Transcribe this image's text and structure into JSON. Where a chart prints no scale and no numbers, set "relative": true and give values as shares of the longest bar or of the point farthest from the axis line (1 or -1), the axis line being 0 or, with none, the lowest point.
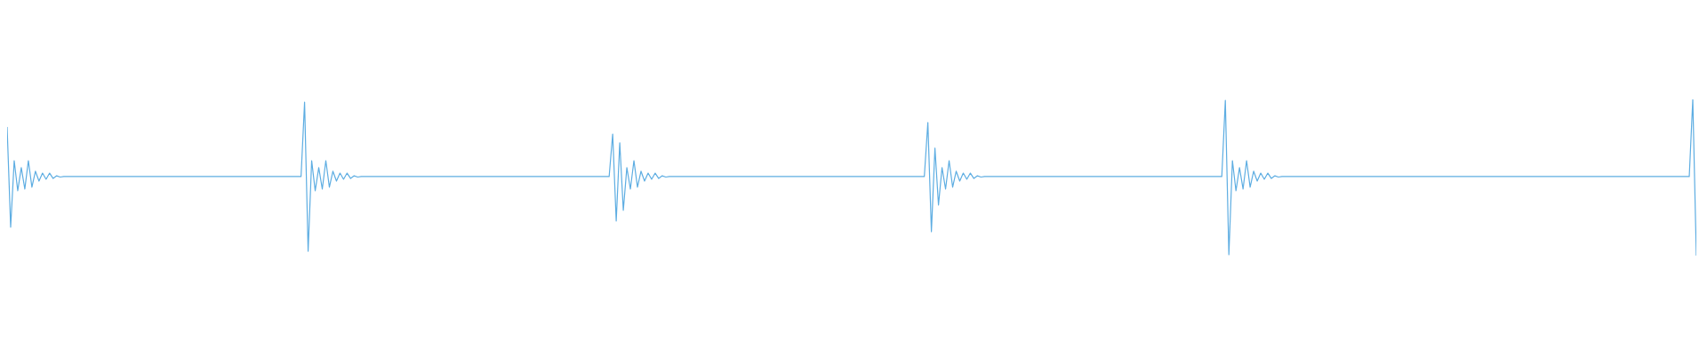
{
  "chart_data": {
    "type": "line",
    "relative": true,
    "color": "#5dade2",
    "categories": [
      null,
      null,
      null,
      null,
      null,
      null,
      null,
      null,
      null,
      null,
      null,
      null,
      null,
      null,
      null,
      null,
      null,
      null,
      null,
      null,
      null,
      null,
      null,
      null,
      null,
      null,
      null,
      null,
      null,
      null,
      null,
      null,
      null,
      null,
      null,
      null,
      null,
      null,
      null,
      null,
      null,
      null,
      null,
      null,
      null,
      null,
      null,
      null,
      null,
      null,
      null,
      null,
      null,
      null,
      null,
      null,
      null,
      null,
      null,
      null,
      null,
      null,
      null,
      null,
      null,
      null,
      null,
      null,
      null,
      null,
      null,
      null,
      null,
      null,
      null,
      null,
      null,
      null,
      null,
      null,
      null,
      null,
      null,
      null,
      null,
      null,
      null,
      null,
      null,
      null,
      null,
      null,
      null,
      null,
      null,
      null,
      null,
      null,
      null,
      null,
      null,
      null,
      null,
      null,
      null,
      null,
      null,
      null,
      null,
      null,
      null,
      null,
      null,
      null,
      null,
      null,
      null,
      null,
      null,
      null,
      null,
      null,
      null,
      null,
      null,
      null,
      null,
      null,
      null,
      null,
      null,
      null,
      null,
      null,
      null,
      null,
      null,
      null,
      null,
      null,
      null,
      null,
      null,
      null,
      null,
      null,
      null,
      null,
      null,
      null,
      null,
      null,
      null,
      null,
      null,
      null,
      null,
      null,
      null,
      null,
      null,
      null,
      null,
      null,
      null,
      null,
      null,
      null,
      null,
      null,
      null,
      null,
      null,
      null,
      null,
      null,
      null,
      null,
      null,
      null,
      null,
      null,
      null,
      null,
      null,
      null,
      null,
      null,
      null,
      null,
      null,
      null,
      null,
      null,
      null,
      null,
      null,
      null,
      null,
      null,
      null,
      null,
      null,
      null,
      null,
      null,
      null,
      null,
      null,
      null,
      null,
      null,
      null,
      null,
      null,
      null,
      null,
      null,
      null,
      null,
      null,
      null,
      null,
      null,
      null,
      null,
      null,
      null,
      null,
      null,
      null,
      null,
      null,
      null,
      null,
      null,
      null,
      null,
      null,
      null,
      null,
      null,
      null,
      null,
      null,
      null,
      null,
      null,
      null,
      null,
      null,
      null,
      null,
      null,
      null,
      null,
      null,
      null,
      null,
      null,
      null,
      null,
      null,
      null,
      null,
      null,
      null,
      null,
      null,
      null,
      null,
      null,
      null,
      null,
      null,
      null,
      null,
      null,
      null,
      null,
      null,
      null,
      null,
      null,
      null,
      null,
      null,
      null,
      null,
      null,
      null,
      null,
      null,
      null,
      null,
      null,
      null,
      null,
      null,
      null,
      null,
      null,
      null,
      null,
      null,
      null,
      null,
      null,
      null,
      null,
      null,
      null,
      null,
      null,
      null,
      null,
      null,
      null,
      null,
      null,
      null,
      null,
      null,
      null,
      null,
      null,
      null,
      null,
      null,
      null,
      null,
      null,
      null,
      null,
      null,
      null,
      null,
      null,
      null,
      null,
      null,
      null,
      null,
      null,
      null,
      null,
      null,
      null,
      null,
      null,
      null,
      null,
      null,
      null,
      null,
      null,
      null,
      null,
      null,
      null,
      null,
      null,
      null,
      null,
      null,
      null,
      null,
      null,
      null,
      null,
      null,
      null,
      null,
      null,
      null,
      null,
      null,
      null,
      null,
      null,
      null,
      null,
      null,
      null,
      null,
      null,
      null,
      null,
      null,
      null,
      null,
      null,
      null,
      null,
      null,
      null,
      null,
      null,
      null,
      null,
      null,
      null,
      null,
      null,
      null,
      null,
      null,
      null,
      null,
      null,
      null,
      null,
      null,
      null,
      null,
      null,
      null,
      null,
      null,
      null,
      null,
      null,
      null,
      null,
      null,
      null,
      null,
      null,
      null,
      null,
      null,
      null,
      null,
      null,
      null,
      null,
      null,
      null,
      null,
      null,
      null,
      null,
      null,
      null,
      null,
      null,
      null,
      null,
      null,
      null,
      null,
      null,
      null,
      null,
      null,
      null,
      null,
      null,
      null,
      null,
      null,
      null,
      null,
      null,
      null,
      null,
      null,
      null,
      null,
      null,
      null,
      null,
      null,
      null,
      null,
      null,
      null,
      null
    ],
    "values": [
      0.824,
      0.182,
      0.608,
      0.415,
      0.563,
      0.426,
      0.608,
      0.438,
      0.54,
      0.477,
      0.528,
      0.489,
      0.528,
      0.494,
      0.511,
      0.503,
      0.506,
      0.506,
      0.506,
      0.506,
      0.506,
      0.506,
      0.506,
      0.506,
      0.506,
      0.506,
      0.506,
      0.506,
      0.506,
      0.506,
      0.506,
      0.506,
      0.506,
      0.506,
      0.506,
      0.506,
      0.506,
      0.506,
      0.506,
      0.506,
      0.506,
      0.506,
      0.506,
      0.506,
      0.506,
      0.506,
      0.506,
      0.506,
      0.506,
      0.506,
      0.506,
      0.506,
      0.506,
      0.506,
      0.506,
      0.506,
      0.506,
      0.506,
      0.506,
      0.506,
      0.506,
      0.506,
      0.506,
      0.506,
      0.506,
      0.506,
      0.506,
      0.506,
      0.506,
      0.506,
      0.506,
      0.506,
      0.506,
      0.506,
      0.506,
      0.506,
      0.506,
      0.506,
      0.506,
      0.506,
      0.506,
      0.506,
      0.506,
      0.506,
      0.983,
      0.028,
      0.608,
      0.415,
      0.563,
      0.426,
      0.608,
      0.438,
      0.54,
      0.477,
      0.528,
      0.489,
      0.528,
      0.494,
      0.511,
      0.503,
      0.506,
      0.506,
      0.506,
      0.506,
      0.506,
      0.506,
      0.506,
      0.506,
      0.506,
      0.506,
      0.506,
      0.506,
      0.506,
      0.506,
      0.506,
      0.506,
      0.506,
      0.506,
      0.506,
      0.506,
      0.506,
      0.506,
      0.506,
      0.506,
      0.506,
      0.506,
      0.506,
      0.506,
      0.506,
      0.506,
      0.506,
      0.506,
      0.506,
      0.506,
      0.506,
      0.506,
      0.506,
      0.506,
      0.506,
      0.506,
      0.506,
      0.506,
      0.506,
      0.506,
      0.506,
      0.506,
      0.506,
      0.506,
      0.506,
      0.506,
      0.506,
      0.506,
      0.506,
      0.506,
      0.506,
      0.506,
      0.506,
      0.506,
      0.506,
      0.506,
      0.506,
      0.506,
      0.506,
      0.506,
      0.506,
      0.506,
      0.506,
      0.506,
      0.506,
      0.506,
      0.506,
      0.778,
      0.222,
      0.722,
      0.29,
      0.563,
      0.426,
      0.608,
      0.438,
      0.54,
      0.477,
      0.528,
      0.489,
      0.528,
      0.494,
      0.511,
      0.503,
      0.506,
      0.506,
      0.506,
      0.506,
      0.506,
      0.506,
      0.506,
      0.506,
      0.506,
      0.506,
      0.506,
      0.506,
      0.506,
      0.506,
      0.506,
      0.506,
      0.506,
      0.506,
      0.506,
      0.506,
      0.506,
      0.506,
      0.506,
      0.506,
      0.506,
      0.506,
      0.506,
      0.506,
      0.506,
      0.506,
      0.506,
      0.506,
      0.506,
      0.506,
      0.506,
      0.506,
      0.506,
      0.506,
      0.506,
      0.506,
      0.506,
      0.506,
      0.506,
      0.506,
      0.506,
      0.506,
      0.506,
      0.506,
      0.506,
      0.506,
      0.506,
      0.506,
      0.506,
      0.506,
      0.506,
      0.506,
      0.506,
      0.506,
      0.506,
      0.506,
      0.506,
      0.506,
      0.506,
      0.506,
      0.506,
      0.506,
      0.506,
      0.506,
      0.506,
      0.506,
      0.506,
      0.506,
      0.506,
      0.852,
      0.153,
      0.688,
      0.324,
      0.563,
      0.426,
      0.608,
      0.438,
      0.54,
      0.477,
      0.528,
      0.489,
      0.528,
      0.494,
      0.511,
      0.503,
      0.506,
      0.506,
      0.506,
      0.506,
      0.506,
      0.506,
      0.506,
      0.506,
      0.506,
      0.506,
      0.506,
      0.506,
      0.506,
      0.506,
      0.506,
      0.506,
      0.506,
      0.506,
      0.506,
      0.506,
      0.506,
      0.506,
      0.506,
      0.506,
      0.506,
      0.506,
      0.506,
      0.506,
      0.506,
      0.506,
      0.506,
      0.506,
      0.506,
      0.506,
      0.506,
      0.506,
      0.506,
      0.506,
      0.506,
      0.506,
      0.506,
      0.506,
      0.506,
      0.506,
      0.506,
      0.506,
      0.506,
      0.506,
      0.506,
      0.506,
      0.506,
      0.506,
      0.506,
      0.506,
      0.506,
      0.506,
      0.506,
      0.506,
      0.506,
      0.506,
      0.506,
      0.506,
      0.506,
      0.506,
      0.506,
      0.506,
      0.506,
      0.506,
      0.994,
      0.006,
      0.608,
      0.415,
      0.563,
      0.426,
      0.608,
      0.438,
      0.54,
      0.477,
      0.528,
      0.489,
      0.528,
      0.494,
      0.511,
      0.503,
      0.506,
      0.506,
      0.506,
      0.506,
      0.506,
      0.506,
      0.506,
      0.506,
      0.506,
      0.506,
      0.506,
      0.506,
      0.506,
      0.506,
      0.506,
      0.506,
      0.506,
      0.506,
      0.506,
      0.506,
      0.506,
      0.506,
      0.506,
      0.506,
      0.506,
      0.506,
      0.506,
      0.506,
      0.506,
      0.506,
      0.506,
      0.506,
      0.506,
      0.506,
      0.506,
      0.506,
      0.506,
      0.506,
      0.506,
      0.506,
      0.506,
      0.506,
      0.506,
      0.506,
      0.506,
      0.506,
      0.506,
      0.506,
      0.506,
      0.506,
      0.506,
      0.506,
      0.506,
      0.506,
      0.506,
      0.506,
      0.506,
      0.506,
      0.506,
      0.506,
      0.506,
      0.506,
      0.506,
      0.506,
      0.506,
      0.506,
      0.506,
      0.506,
      0.506,
      0.506,
      0.506,
      0.506,
      0.506,
      0.506,
      0.506,
      0.506,
      0.506,
      0.506,
      0.506,
      0.506,
      0.506,
      0.506,
      0.506,
      0.506,
      0.506,
      0.506,
      0.506,
      0.506,
      0.506,
      0.506,
      0.506,
      0.506,
      0.506,
      0.506,
      0.506,
      0.506,
      0.506,
      0.506,
      0.506,
      0.506,
      0.506,
      0.506,
      0.506,
      0.506,
      0.506,
      0.506,
      0.506,
      0.506,
      0.506,
      0.506,
      0.506,
      0.506,
      0.506,
      0.506,
      0.506,
      0.506,
      1,
      0
    ]
  }
}
